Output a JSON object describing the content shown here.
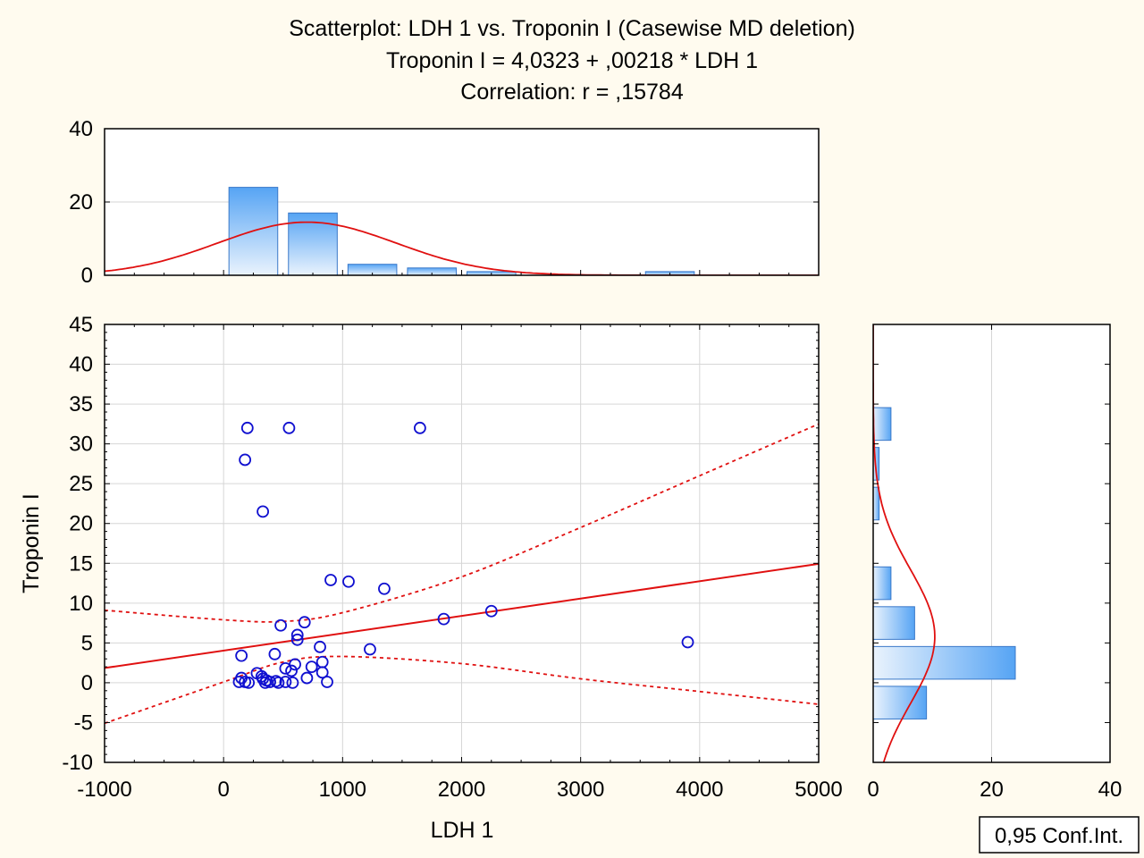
{
  "chart_data": {
    "type": "scatter",
    "title_lines": [
      "Scatterplot: LDH 1 vs. Troponin I (Casewise MD deletion)",
      "Troponin I = 4,0323 + ,00218 * LDH 1",
      "Correlation: r = ,15784"
    ],
    "xlabel": "LDH 1",
    "ylabel": "Troponin I",
    "xlim": [
      -1000,
      5000
    ],
    "ylim": [
      -10,
      45
    ],
    "x_ticks": [
      -1000,
      0,
      1000,
      2000,
      3000,
      4000,
      5000
    ],
    "y_ticks": [
      -10,
      -5,
      0,
      5,
      10,
      15,
      20,
      25,
      30,
      35,
      40,
      45
    ],
    "grid": true,
    "legend": {
      "position": "bottom-right",
      "label": "0,95 Conf.Int."
    },
    "regression": {
      "intercept": 4.0323,
      "slope": 0.00218,
      "color": "#e01010"
    },
    "confidence_band": {
      "upper": [
        [
          -1000,
          9.1
        ],
        [
          0,
          7.9
        ],
        [
          500,
          7.7
        ],
        [
          1000,
          8.8
        ],
        [
          2000,
          13.3
        ],
        [
          3000,
          19.5
        ],
        [
          4000,
          26.0
        ],
        [
          5000,
          32.5
        ]
      ],
      "lower": [
        [
          -1000,
          -5.1
        ],
        [
          0,
          0.1
        ],
        [
          500,
          2.6
        ],
        [
          1000,
          3.3
        ],
        [
          2000,
          2.4
        ],
        [
          3000,
          0.5
        ],
        [
          4000,
          -1.1
        ],
        [
          5000,
          -2.7
        ]
      ]
    },
    "points": {
      "color": "#1010d0",
      "x": [
        200,
        550,
        1650,
        180,
        330,
        900,
        1050,
        1350,
        1850,
        2250,
        3900,
        480,
        680,
        620,
        620,
        810,
        1230,
        150,
        430,
        740,
        830,
        520,
        570,
        600,
        830,
        700,
        280,
        320,
        360,
        440,
        870,
        130,
        180,
        150,
        210,
        330,
        350,
        390,
        460,
        520,
        580
      ],
      "y": [
        32,
        32,
        32,
        28,
        21.5,
        12.9,
        12.7,
        11.8,
        8,
        9,
        5.1,
        7.2,
        7.6,
        6,
        5.4,
        4.5,
        4.2,
        3.4,
        3.6,
        2,
        2.6,
        1.8,
        1.5,
        2.3,
        1.3,
        0.6,
        1.2,
        0.8,
        0.3,
        0.2,
        0.1,
        0.1,
        0.1,
        0.6,
        0,
        0.5,
        0,
        0.1,
        0,
        0.1,
        0
      ]
    },
    "x_histogram": {
      "bin_edges": [
        0,
        500,
        1000,
        1500,
        2000,
        2500,
        3000,
        3500,
        4000
      ],
      "counts": [
        24,
        17,
        3,
        2,
        1,
        0,
        0,
        1
      ],
      "ylim": [
        0,
        40
      ],
      "y_ticks": [
        0,
        20,
        40
      ],
      "normal_fit": {
        "mean": 700,
        "sd": 750,
        "peak": 14.5
      }
    },
    "y_histogram": {
      "bin_edges": [
        -5,
        0,
        5,
        10,
        15,
        20,
        25,
        30,
        35
      ],
      "counts": [
        9,
        24,
        7,
        3,
        0,
        1,
        1,
        3
      ],
      "xlim": [
        0,
        40
      ],
      "x_ticks": [
        0,
        20,
        40
      ],
      "normal_fit": {
        "mean": 5.8,
        "sd": 8.4,
        "peak": 10.4
      }
    },
    "colors": {
      "background": "#fffbef",
      "bar_top": "#56a4f4",
      "bar_bottom": "#eaf3fd",
      "bar_stroke": "#3a78c8",
      "fit": "#e01010",
      "grid": "#d6d6d6"
    }
  }
}
